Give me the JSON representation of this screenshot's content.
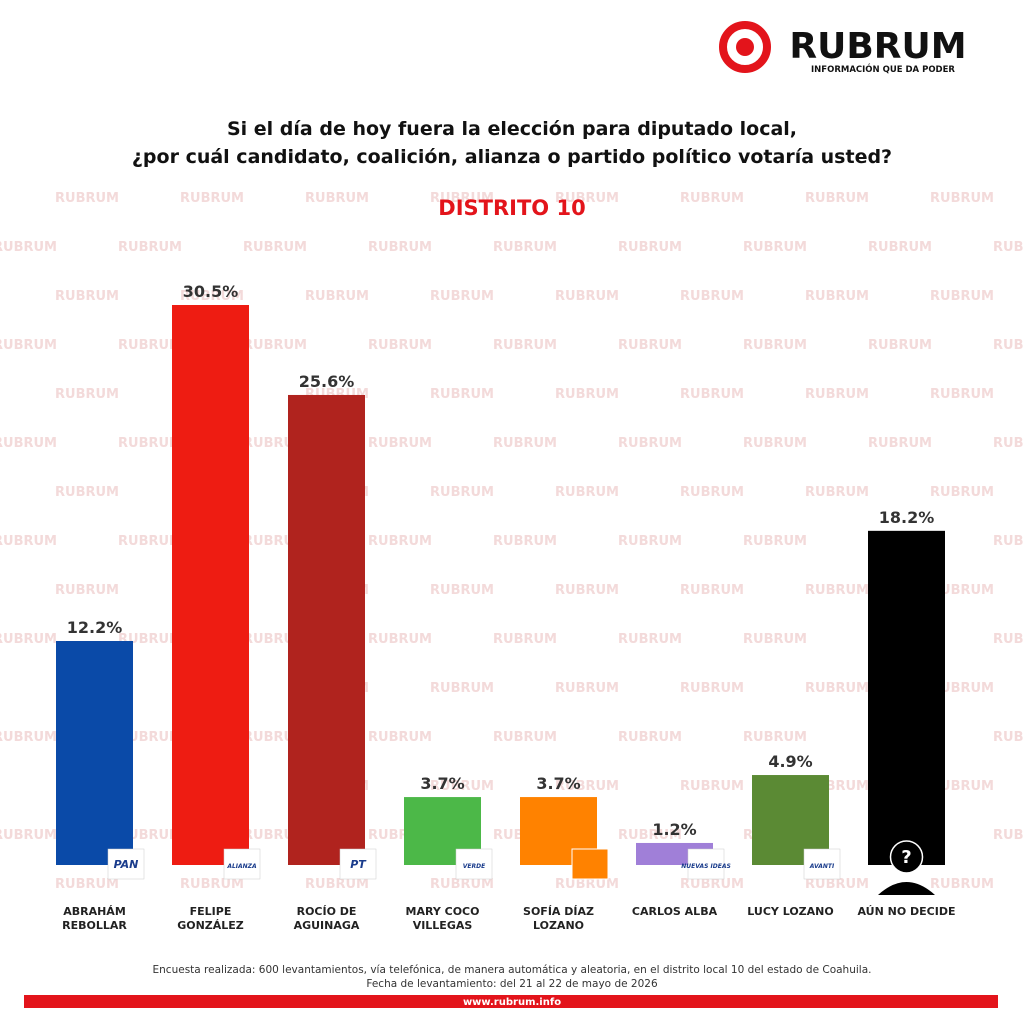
{
  "header": {
    "brand": "RUBRUM",
    "tagline": "INFORMACIÓN QUE DA PODER",
    "question": [
      "Si el día de hoy fuera la elección para diputado local,",
      "¿por cuál candidato, coalición, alianza o partido político votaría usted?"
    ]
  },
  "chart_data": {
    "type": "bar",
    "title": "DISTRITO 10",
    "categories": [
      "ABRAHÁM REBOLLAR",
      "FELIPE GONZÁLEZ",
      "ROCÍO DE AGUINAGA",
      "MARY COCO VILLEGAS",
      "SOFÍA DÍAZ LOZANO",
      "CARLOS ALBA",
      "LUCY LOZANO",
      "AÚN NO DECIDE"
    ],
    "values": [
      12.2,
      30.5,
      25.6,
      3.7,
      3.7,
      1.2,
      4.9,
      18.2
    ],
    "value_labels": [
      "12.2%",
      "30.5%",
      "25.6%",
      "3.7%",
      "3.7%",
      "1.2%",
      "4.9%",
      "18.2%"
    ],
    "colors": [
      "#0a4aa8",
      "#ee1c12",
      "#b0231e",
      "#4cb848",
      "#ff8200",
      "#a07fd8",
      "#5b8a34",
      "#000000"
    ],
    "logos": [
      "PAN",
      "ALIANZA",
      "PT",
      "VERDE",
      null,
      "NUEVAS IDEAS",
      "AVANTI",
      "?"
    ]
  },
  "footer": {
    "notes": [
      "Encuesta realizada: 600 levantamientos, vía telefónica, de manera automática y aleatoria, en el distrito local 10 del estado de Coahuila.",
      "Fecha de levantamiento: del 21 al 22 de mayo de 2026"
    ],
    "url": "www.rubrum.info"
  }
}
